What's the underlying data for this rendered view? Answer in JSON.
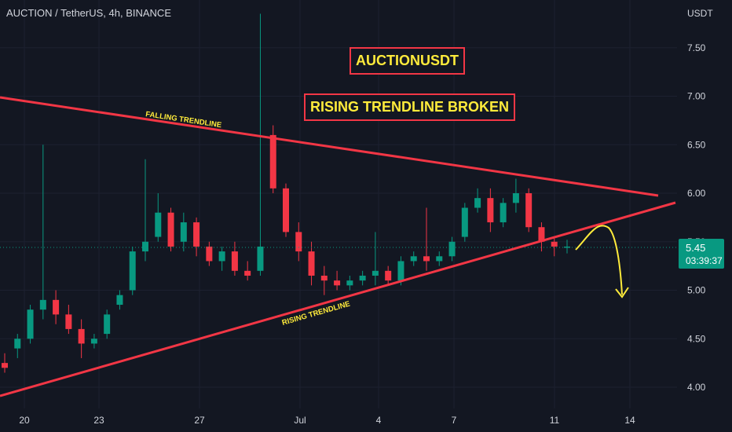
{
  "header": {
    "symbol_line": "AUCTION / TetherUS, 4h, BINANCE"
  },
  "y_axis": {
    "unit": "USDT"
  },
  "price_tag": {
    "price": "5.45",
    "countdown": "03:39:37"
  },
  "annotations": {
    "banner_symbol": "AUCTIONUSDT",
    "banner_signal": "RISING TRENDLINE BROKEN",
    "falling_label": "FALLING TRENDLINE",
    "rising_label": "RISING TRENDLINE"
  },
  "colors": {
    "background": "#131722",
    "up": "#089981",
    "down": "#f23645",
    "trendline": "#f23645",
    "annotation": "#ffeb3b",
    "text": "#d1d4dc"
  },
  "chart_data": {
    "type": "candlestick",
    "y_ticks": [
      "4.00",
      "4.50",
      "5.00",
      "5.50",
      "6.00",
      "6.50",
      "7.00",
      "7.50"
    ],
    "x_ticks": [
      "20",
      "23",
      "27",
      "Jul",
      "4",
      "7",
      "11",
      "14"
    ],
    "last_price": 5.45,
    "ohlc_sampled": [
      [
        4.25,
        4.35,
        4.15,
        4.2
      ],
      [
        4.4,
        4.55,
        4.3,
        4.5
      ],
      [
        4.5,
        4.85,
        4.45,
        4.8
      ],
      [
        4.8,
        6.5,
        4.7,
        4.9
      ],
      [
        4.9,
        5.0,
        4.65,
        4.75
      ],
      [
        4.75,
        4.85,
        4.55,
        4.6
      ],
      [
        4.6,
        4.7,
        4.3,
        4.45
      ],
      [
        4.45,
        4.55,
        4.4,
        4.5
      ],
      [
        4.55,
        4.8,
        4.5,
        4.75
      ],
      [
        4.85,
        5.0,
        4.8,
        4.95
      ],
      [
        5.0,
        5.45,
        4.95,
        5.4
      ],
      [
        5.4,
        6.35,
        5.3,
        5.5
      ],
      [
        5.55,
        6.0,
        5.5,
        5.8
      ],
      [
        5.8,
        5.85,
        5.4,
        5.45
      ],
      [
        5.5,
        5.8,
        5.4,
        5.7
      ],
      [
        5.7,
        5.75,
        5.35,
        5.45
      ],
      [
        5.45,
        5.5,
        5.25,
        5.3
      ],
      [
        5.3,
        5.45,
        5.2,
        5.4
      ],
      [
        5.4,
        5.5,
        5.15,
        5.2
      ],
      [
        5.2,
        5.3,
        5.1,
        5.15
      ],
      [
        5.2,
        7.85,
        5.15,
        5.45
      ],
      [
        6.6,
        6.7,
        6.0,
        6.05
      ],
      [
        6.05,
        6.1,
        5.55,
        5.6
      ],
      [
        5.6,
        5.7,
        5.3,
        5.4
      ],
      [
        5.4,
        5.5,
        5.05,
        5.15
      ],
      [
        5.15,
        5.25,
        4.95,
        5.1
      ],
      [
        5.1,
        5.2,
        5.0,
        5.05
      ],
      [
        5.05,
        5.15,
        5.0,
        5.1
      ],
      [
        5.1,
        5.2,
        5.05,
        5.15
      ],
      [
        5.15,
        5.6,
        5.05,
        5.2
      ],
      [
        5.2,
        5.25,
        5.05,
        5.1
      ],
      [
        5.1,
        5.35,
        5.05,
        5.3
      ],
      [
        5.3,
        5.4,
        5.25,
        5.35
      ],
      [
        5.35,
        5.85,
        5.2,
        5.3
      ],
      [
        5.3,
        5.4,
        5.25,
        5.35
      ],
      [
        5.35,
        5.55,
        5.3,
        5.5
      ],
      [
        5.55,
        5.9,
        5.5,
        5.85
      ],
      [
        5.85,
        6.05,
        5.8,
        5.95
      ],
      [
        5.95,
        6.05,
        5.6,
        5.7
      ],
      [
        5.7,
        5.95,
        5.65,
        5.9
      ],
      [
        5.9,
        6.15,
        5.8,
        6.0
      ],
      [
        6.0,
        6.05,
        5.6,
        5.65
      ],
      [
        5.65,
        5.7,
        5.4,
        5.5
      ],
      [
        5.5,
        5.55,
        5.35,
        5.45
      ],
      [
        5.45,
        5.52,
        5.38,
        5.45
      ]
    ],
    "falling_trendline": {
      "label": "FALLING TRENDLINE",
      "from": [
        "20",
        7.0
      ],
      "to": [
        "14+",
        6.0
      ]
    },
    "rising_trendline": {
      "label": "RISING TRENDLINE",
      "from": [
        "20",
        3.9
      ],
      "to": [
        "14+",
        5.9
      ]
    },
    "projection": "arrow from 5.45 up to ~5.65 then down to ~5.00"
  }
}
